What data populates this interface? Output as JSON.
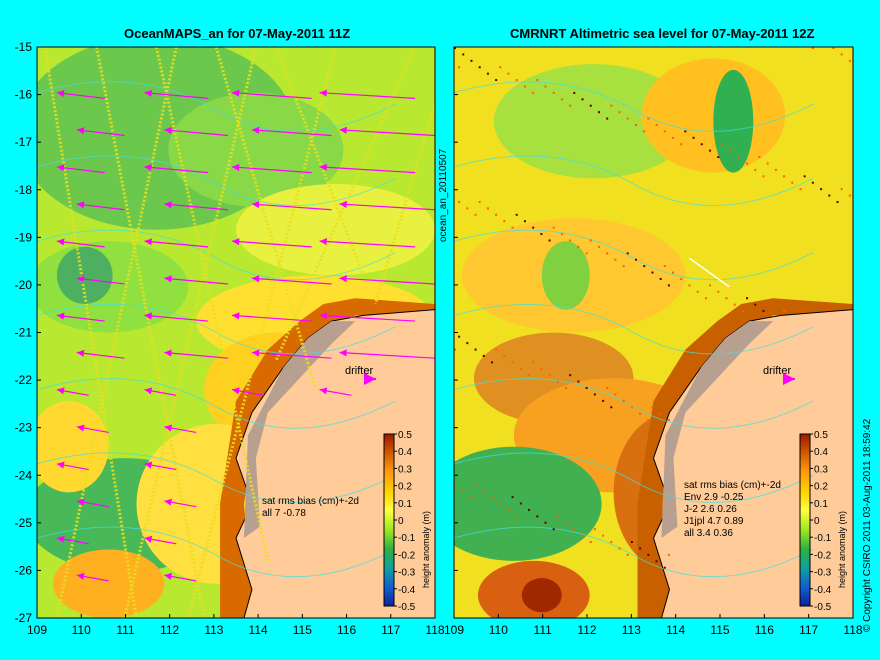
{
  "panels": [
    {
      "title": "OceanMAPS_an for 07-May-2011 11Z",
      "drifter_label": "drifter",
      "stats_title": "sat rms bias (cm)+-2d",
      "stats_lines": [
        "all 7 -0.78"
      ],
      "colorbar_label": "height anomaly (m)"
    },
    {
      "title": "CMRNRT Altimetric sea level  for 07-May-2011 12Z",
      "drifter_label": "drifter",
      "stats_title": "sat rms bias (cm)+-2d",
      "stats_lines": [
        "Env   2.9 -0.25",
        "J-2   2.6 0.26",
        "J1jpl 4.7 0.89",
        "all 3.4 0.36"
      ],
      "colorbar_label": "height anomaly (m)"
    }
  ],
  "side_label": "ocean_an_20110507",
  "copyright": "© Copyright CSIRO 2011   03-Aug-2011 18:59:42",
  "lat_ticks": [
    "-15",
    "-16",
    "-17",
    "-18",
    "-19",
    "-20",
    "-21",
    "-22",
    "-23",
    "-24",
    "-25",
    "-26",
    "-27"
  ],
  "lon_ticks": [
    "109",
    "110",
    "111",
    "112",
    "113",
    "114",
    "115",
    "116",
    "117",
    "118"
  ],
  "colorbar_ticks": [
    "0.5",
    "0.4",
    "0.3",
    "0.2",
    "0.1",
    "0",
    "-0.1",
    "-0.2",
    "-0.3",
    "-0.4",
    "-0.5"
  ],
  "colorbar_colors": [
    "#9a1c00",
    "#d05a00",
    "#ff9a10",
    "#ffd000",
    "#ffff40",
    "#a0e820",
    "#30b040",
    "#10a0a0",
    "#1060d0",
    "#1020a0"
  ],
  "colors": {
    "background": "#00ffff",
    "land": "#ffcc99",
    "coast_shallow": "#b8a090",
    "drifter": "#ff00ff",
    "contour": "#40e0e0"
  }
}
